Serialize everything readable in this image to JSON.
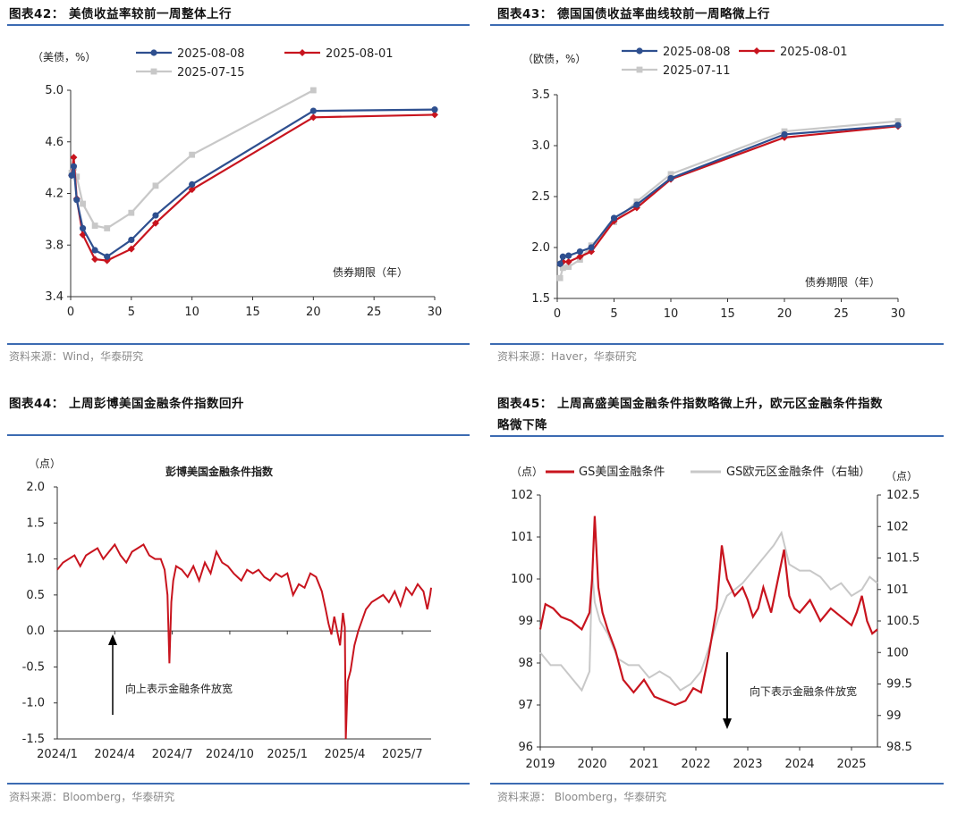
{
  "panels": {
    "p42": {
      "title": "图表42：  美债收益率较前一周整体上行",
      "source": "资料来源：Wind，华泰研究"
    },
    "p43": {
      "title": "图表43：  德国国债收益率曲线较前一周略微上行",
      "source": "资料来源：Haver，华泰研究"
    },
    "p44": {
      "title": "图表44：  上周彭博美国金融条件指数回升",
      "source": "资料来源：Bloomberg，华泰研究"
    },
    "p45": {
      "title_line1": "图表45：  上周高盛美国金融条件指数略微上升，欧元区金融条件指数",
      "title_line2": "略微下降",
      "source": "资料来源：  Bloomberg，华泰研究"
    }
  },
  "chart_data": [
    {
      "id": "us-yield-curve",
      "type": "line",
      "unit_label": "（美债，%）",
      "xlabel": "债券期限（年）",
      "xlim": [
        0,
        30
      ],
      "ylim": [
        3.4,
        5.0
      ],
      "xticks": [
        0,
        5,
        10,
        15,
        20,
        25,
        30
      ],
      "yticks": [
        "5.0",
        "4.6",
        "4.2",
        "3.8",
        "3.4"
      ],
      "series": [
        {
          "name": "2025-08-08",
          "color": "#2e4f8f",
          "marker": "circle",
          "x": [
            0.08,
            0.25,
            0.5,
            1,
            2,
            3,
            5,
            7,
            10,
            20,
            30
          ],
          "y": [
            4.34,
            4.41,
            4.15,
            3.93,
            3.76,
            3.71,
            3.84,
            4.03,
            4.27,
            4.84,
            4.85
          ]
        },
        {
          "name": "2025-08-01",
          "color": "#c8141e",
          "marker": "diamond",
          "x": [
            0.08,
            0.25,
            0.5,
            1,
            2,
            3,
            5,
            7,
            10,
            20,
            30
          ],
          "y": [
            4.34,
            4.48,
            4.16,
            3.88,
            3.69,
            3.68,
            3.77,
            3.97,
            4.23,
            4.79,
            4.81
          ]
        },
        {
          "name": "2025-07-15",
          "color": "#c8c8c8",
          "marker": "square",
          "x": [
            0.08,
            0.25,
            0.5,
            1,
            2,
            3,
            5,
            7,
            10,
            20
          ],
          "y": [
            4.36,
            4.4,
            4.33,
            4.12,
            3.95,
            3.93,
            4.05,
            4.26,
            4.5,
            5.0
          ]
        }
      ]
    },
    {
      "id": "de-yield-curve",
      "type": "line",
      "unit_label": "（欧债，%）",
      "xlabel": "债券期限（年）",
      "xlim": [
        0,
        30
      ],
      "ylim": [
        1.5,
        3.5
      ],
      "xticks": [
        0,
        5,
        10,
        15,
        20,
        25,
        30
      ],
      "yticks": [
        "3.5",
        "3.0",
        "2.5",
        "2.0",
        "1.5"
      ],
      "series": [
        {
          "name": "2025-08-08",
          "color": "#2e4f8f",
          "marker": "circle",
          "x": [
            0.25,
            0.5,
            1,
            2,
            3,
            5,
            7,
            10,
            20,
            30
          ],
          "y": [
            1.84,
            1.91,
            1.92,
            1.96,
            2.0,
            2.29,
            2.42,
            2.68,
            3.11,
            3.2
          ]
        },
        {
          "name": "2025-08-01",
          "color": "#c8141e",
          "marker": "diamond",
          "x": [
            0.25,
            0.5,
            1,
            2,
            3,
            5,
            7,
            10,
            20,
            30
          ],
          "y": [
            1.84,
            1.86,
            1.86,
            1.91,
            1.96,
            2.26,
            2.39,
            2.67,
            3.08,
            3.19
          ]
        },
        {
          "name": "2025-07-11",
          "color": "#c8c8c8",
          "marker": "square",
          "x": [
            0.25,
            0.5,
            1,
            2,
            3,
            5,
            7,
            10,
            20,
            30
          ],
          "y": [
            1.7,
            1.8,
            1.81,
            1.88,
            2.02,
            2.25,
            2.45,
            2.72,
            3.14,
            3.24
          ]
        }
      ]
    },
    {
      "id": "bloomberg-us-fci",
      "type": "line",
      "title": "彭博美国金融条件指数",
      "unit_label": "（点）",
      "annotation": "向上表示金融条件放宽",
      "ylim": [
        -1.5,
        2.0
      ],
      "yticks": [
        "2.0",
        "1.5",
        "1.0",
        "0.5",
        "0.0",
        "-0.5",
        "-1.0",
        "-1.5"
      ],
      "xtick_labels": [
        "2024/1",
        "2024/4",
        "2024/7",
        "2024/10",
        "2025/1",
        "2025/4",
        "2025/7"
      ],
      "x_range_months": [
        0,
        19.5
      ],
      "series": [
        {
          "color": "#c8141e",
          "x": [
            0,
            0.3,
            0.6,
            0.9,
            1.2,
            1.5,
            1.8,
            2.1,
            2.4,
            2.7,
            3.0,
            3.3,
            3.6,
            3.9,
            4.2,
            4.5,
            4.8,
            5.1,
            5.4,
            5.6,
            5.75,
            5.85,
            5.95,
            6.05,
            6.2,
            6.5,
            6.8,
            7.1,
            7.4,
            7.7,
            8.0,
            8.3,
            8.6,
            8.9,
            9.2,
            9.4,
            9.6,
            9.9,
            10.2,
            10.5,
            10.8,
            11.1,
            11.4,
            11.7,
            12.0,
            12.3,
            12.6,
            12.9,
            13.2,
            13.5,
            13.8,
            14.0,
            14.15,
            14.3,
            14.45,
            14.6,
            14.75,
            14.9,
            15.0,
            15.05,
            15.15,
            15.3,
            15.5,
            15.7,
            15.9,
            16.1,
            16.4,
            16.7,
            17.0,
            17.3,
            17.6,
            17.9,
            18.2,
            18.5,
            18.8,
            19.1,
            19.3,
            19.45,
            19.5
          ],
          "y": [
            0.85,
            0.95,
            1.0,
            1.05,
            0.9,
            1.05,
            1.1,
            1.15,
            1.0,
            1.1,
            1.2,
            1.05,
            0.95,
            1.1,
            1.15,
            1.2,
            1.05,
            1.0,
            1.0,
            0.85,
            0.5,
            -0.45,
            0.4,
            0.7,
            0.9,
            0.85,
            0.75,
            0.9,
            0.7,
            0.95,
            0.8,
            1.1,
            0.95,
            0.9,
            0.8,
            0.75,
            0.7,
            0.85,
            0.8,
            0.85,
            0.75,
            0.7,
            0.8,
            0.75,
            0.8,
            0.5,
            0.65,
            0.6,
            0.8,
            0.75,
            0.55,
            0.3,
            0.1,
            -0.05,
            0.2,
            0.0,
            -0.2,
            0.25,
            0.05,
            -1.5,
            -0.7,
            -0.55,
            -0.2,
            0.0,
            0.15,
            0.3,
            0.4,
            0.45,
            0.5,
            0.4,
            0.55,
            0.35,
            0.6,
            0.5,
            0.65,
            0.55,
            0.3,
            0.5,
            0.6
          ]
        }
      ]
    },
    {
      "id": "gs-fci",
      "type": "line",
      "unit_label_left": "（点）",
      "unit_label_right": "（点）",
      "annotation": "向下表示金融条件放宽",
      "ylim_left": [
        96,
        102
      ],
      "ylim_right": [
        98.5,
        102.5
      ],
      "yticks_left": [
        "102",
        "101",
        "100",
        "99",
        "98",
        "97",
        "96"
      ],
      "yticks_right": [
        "102.5",
        "102",
        "101.5",
        "101",
        "100.5",
        "100",
        "99.5",
        "99",
        "98.5"
      ],
      "xtick_labels": [
        "2019",
        "2020",
        "2021",
        "2022",
        "2023",
        "2024",
        "2025"
      ],
      "x_range_years": [
        2019.0,
        2025.5
      ],
      "series": [
        {
          "name": "GS美国金融条件",
          "axis": "left",
          "color": "#c8141e",
          "x": [
            2019.0,
            2019.1,
            2019.25,
            2019.4,
            2019.6,
            2019.8,
            2019.95,
            2020.0,
            2020.05,
            2020.12,
            2020.2,
            2020.3,
            2020.45,
            2020.6,
            2020.8,
            2021.0,
            2021.2,
            2021.4,
            2021.6,
            2021.8,
            2021.95,
            2022.1,
            2022.25,
            2022.4,
            2022.5,
            2022.6,
            2022.75,
            2022.9,
            2023.0,
            2023.1,
            2023.2,
            2023.3,
            2023.45,
            2023.6,
            2023.7,
            2023.8,
            2023.9,
            2024.0,
            2024.2,
            2024.4,
            2024.6,
            2024.8,
            2025.0,
            2025.1,
            2025.2,
            2025.3,
            2025.4,
            2025.5
          ],
          "y": [
            98.8,
            99.4,
            99.3,
            99.1,
            99.0,
            98.8,
            99.2,
            100.0,
            101.5,
            99.8,
            99.2,
            98.8,
            98.3,
            97.6,
            97.3,
            97.6,
            97.2,
            97.1,
            97.0,
            97.1,
            97.4,
            97.3,
            98.2,
            99.3,
            100.8,
            100.0,
            99.6,
            99.8,
            99.5,
            99.1,
            99.3,
            99.8,
            99.2,
            100.1,
            100.7,
            99.6,
            99.3,
            99.2,
            99.5,
            99.0,
            99.3,
            99.1,
            98.9,
            99.2,
            99.6,
            99.0,
            98.7,
            98.8
          ]
        },
        {
          "name": "GS欧元区金融条件（右轴）",
          "axis": "right",
          "color": "#c8c8c8",
          "x": [
            2019.0,
            2019.2,
            2019.4,
            2019.6,
            2019.8,
            2019.95,
            2020.0,
            2020.05,
            2020.15,
            2020.3,
            2020.5,
            2020.7,
            2020.9,
            2021.1,
            2021.3,
            2021.5,
            2021.7,
            2021.9,
            2022.1,
            2022.3,
            2022.45,
            2022.6,
            2022.75,
            2022.9,
            2023.1,
            2023.3,
            2023.5,
            2023.65,
            2023.8,
            2024.0,
            2024.2,
            2024.4,
            2024.6,
            2024.8,
            2025.0,
            2025.2,
            2025.35,
            2025.5
          ],
          "y": [
            100.0,
            99.8,
            99.8,
            99.6,
            99.4,
            99.7,
            101.3,
            100.8,
            100.5,
            100.3,
            99.9,
            99.8,
            99.8,
            99.6,
            99.7,
            99.6,
            99.4,
            99.5,
            99.7,
            100.2,
            100.6,
            100.9,
            101.0,
            101.1,
            101.3,
            101.5,
            101.7,
            101.9,
            101.4,
            101.3,
            101.3,
            101.2,
            101.0,
            101.1,
            100.9,
            101.0,
            101.2,
            101.1
          ]
        }
      ]
    }
  ]
}
